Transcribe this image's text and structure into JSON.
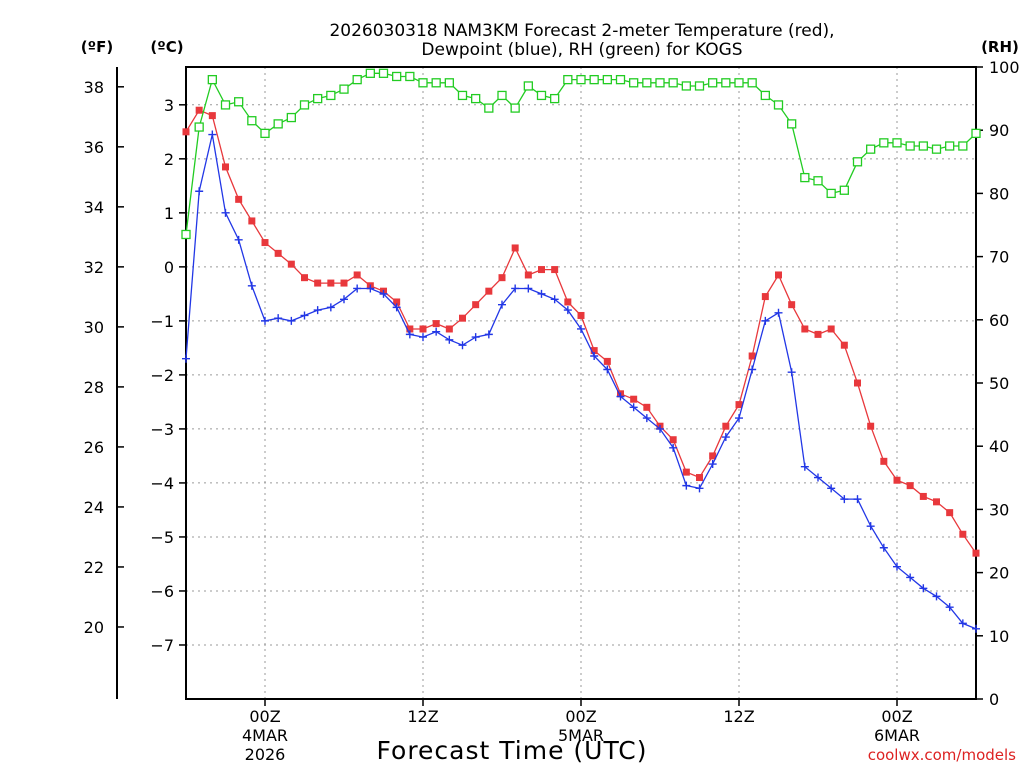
{
  "chart_data": {
    "type": "line",
    "title_line1": "2026030318 NAM3KM Forecast 2-meter Temperature (red),",
    "title_line2": "Dewpoint (blue), RH (green) for KOGS",
    "unit_f": "(ºF)",
    "unit_c": "(ºC)",
    "unit_rh": "(RH)",
    "xlabel": "Forecast Time (UTC)",
    "credit": "coolwx.com/models",
    "x_start_hour": -6,
    "x_end_hour": 54,
    "time_step_hours": 1,
    "c_range": [
      -8.0,
      3.7
    ],
    "f_ticks": [
      "20",
      "22",
      "24",
      "26",
      "28",
      "30",
      "32",
      "34",
      "36",
      "38"
    ],
    "c_ticks": [
      "−7",
      "−6",
      "−5",
      "−4",
      "−3",
      "−2",
      "−1",
      "0",
      "1",
      "2",
      "3"
    ],
    "rh_ticks": [
      "0",
      "10",
      "20",
      "30",
      "40",
      "50",
      "60",
      "70",
      "80",
      "90",
      "100"
    ],
    "x_ticks": [
      {
        "hour": 0,
        "label": "00Z",
        "label2": "4MAR",
        "label3": "2026"
      },
      {
        "hour": 12,
        "label": "12Z",
        "label2": "",
        "label3": ""
      },
      {
        "hour": 24,
        "label": "00Z",
        "label2": "5MAR",
        "label3": ""
      },
      {
        "hour": 36,
        "label": "12Z",
        "label2": "",
        "label3": ""
      },
      {
        "hour": 48,
        "label": "00Z",
        "label2": "6MAR",
        "label3": ""
      }
    ],
    "series": [
      {
        "name": "2-meter Temperature",
        "unit": "C",
        "color": "#e8383c",
        "marker": "filled-square",
        "values": [
          2.5,
          2.9,
          2.8,
          1.85,
          1.25,
          0.85,
          0.45,
          0.25,
          0.05,
          -0.2,
          -0.3,
          -0.3,
          -0.3,
          -0.15,
          -0.35,
          -0.45,
          -0.65,
          -1.15,
          -1.15,
          -1.05,
          -1.15,
          -0.95,
          -0.7,
          -0.45,
          -0.2,
          0.35,
          -0.15,
          -0.05,
          -0.05,
          -0.65,
          -0.9,
          -1.55,
          -1.75,
          -2.35,
          -2.45,
          -2.6,
          -2.95,
          -3.2,
          -3.8,
          -3.9,
          -3.5,
          -2.95,
          -2.55,
          -1.65,
          -0.55,
          -0.15,
          -0.7,
          -1.15,
          -1.25,
          -1.15,
          -1.45,
          -2.15,
          -2.95,
          -3.6,
          -3.95,
          -4.05,
          -4.25,
          -4.35,
          -4.55,
          -4.95,
          -5.3
        ]
      },
      {
        "name": "Dewpoint",
        "unit": "C",
        "color": "#2237e6",
        "marker": "plus",
        "values": [
          -1.7,
          1.4,
          2.45,
          1.0,
          0.5,
          -0.35,
          -1.0,
          -0.95,
          -1.0,
          -0.9,
          -0.8,
          -0.75,
          -0.6,
          -0.4,
          -0.4,
          -0.5,
          -0.75,
          -1.25,
          -1.3,
          -1.2,
          -1.35,
          -1.45,
          -1.3,
          -1.25,
          -0.7,
          -0.4,
          -0.4,
          -0.5,
          -0.6,
          -0.8,
          -1.15,
          -1.65,
          -1.9,
          -2.4,
          -2.6,
          -2.8,
          -3.0,
          -3.35,
          -4.05,
          -4.1,
          -3.65,
          -3.15,
          -2.8,
          -1.9,
          -1.0,
          -0.85,
          -1.95,
          -3.7,
          -3.9,
          -4.1,
          -4.3,
          -4.3,
          -4.8,
          -5.2,
          -5.55,
          -5.75,
          -5.95,
          -6.1,
          -6.3,
          -6.6,
          -6.7
        ]
      },
      {
        "name": "RH",
        "unit": "%",
        "color": "#22cc22",
        "marker": "open-square",
        "values": [
          73.5,
          90.5,
          98,
          94,
          94.5,
          91.5,
          89.5,
          91,
          92,
          94,
          95,
          95.5,
          96.5,
          98,
          99,
          99,
          98.5,
          98.5,
          97.5,
          97.5,
          97.5,
          95.5,
          95,
          93.5,
          95.5,
          93.5,
          97,
          95.5,
          95,
          98,
          98,
          98,
          98,
          98,
          97.5,
          97.5,
          97.5,
          97.5,
          97,
          97,
          97.5,
          97.5,
          97.5,
          97.5,
          95.5,
          94,
          91,
          82.5,
          82,
          80,
          80.5,
          85,
          87,
          88,
          88,
          87.5,
          87.5,
          87,
          87.5,
          87.5,
          89.5
        ]
      }
    ]
  }
}
